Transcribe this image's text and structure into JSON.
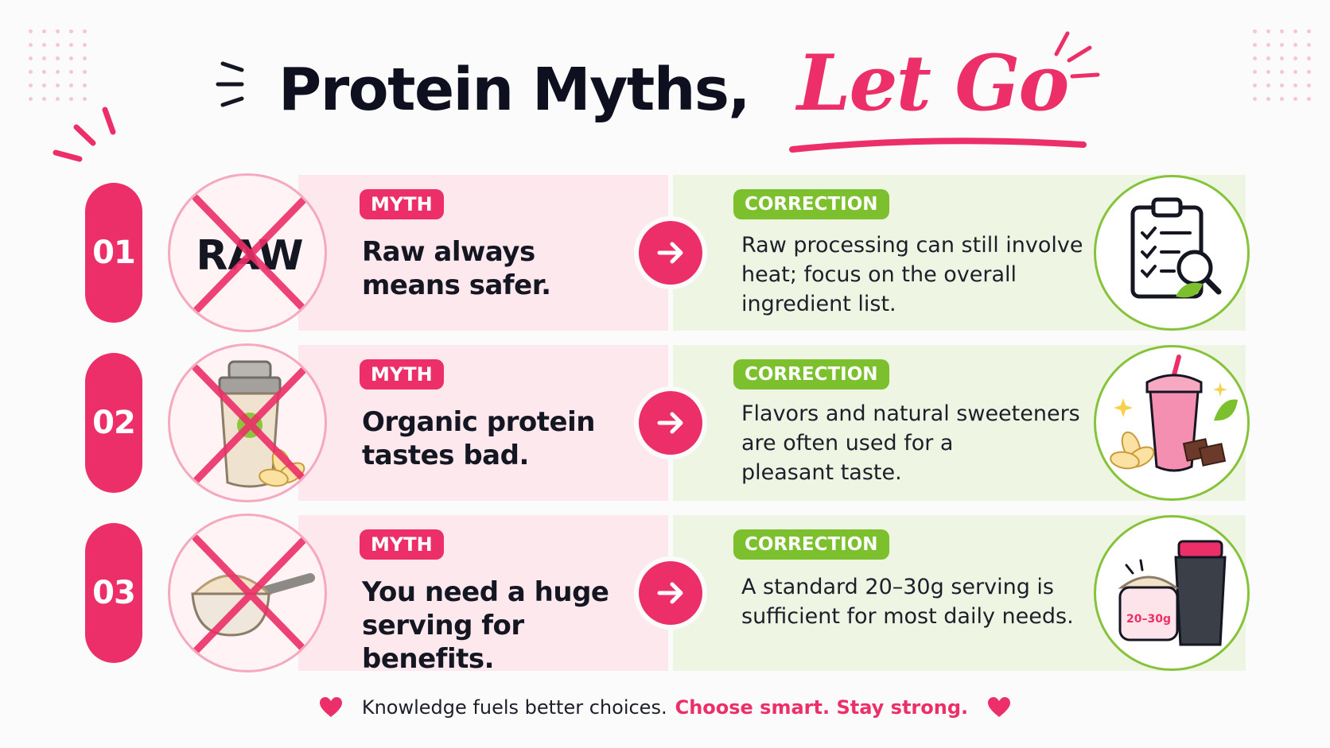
{
  "title": {
    "main": "Protein Myths,",
    "accent": "Let Go"
  },
  "colors": {
    "accent": "#ec2f68",
    "correction": "#7cc02e",
    "myth_bg": "#fde8ee",
    "correction_bg": "#eef6e3"
  },
  "rows": [
    {
      "number": "01",
      "myth_label": "MYTH",
      "myth_lines": [
        "Raw always",
        "means safer."
      ],
      "correction_label": "CORRECTION",
      "correction_lines": [
        "Raw processing can still involve",
        "heat; focus on the overall",
        "ingredient list."
      ],
      "left_icon": "raw-crossed-icon",
      "left_icon_text": "RAW",
      "right_icon": "clipboard-magnifier-icon"
    },
    {
      "number": "02",
      "myth_label": "MYTH",
      "myth_lines": [
        "Organic protein",
        "tastes bad."
      ],
      "correction_label": "CORRECTION",
      "correction_lines": [
        "Flavors and natural sweeteners",
        "are often used for a",
        "pleasant taste."
      ],
      "left_icon": "shaker-crossed-icon",
      "right_icon": "smoothie-chocolate-icon"
    },
    {
      "number": "03",
      "myth_label": "MYTH",
      "myth_lines": [
        "You need a huge",
        "serving for benefits."
      ],
      "correction_label": "CORRECTION",
      "correction_lines": [
        "A standard 20–30g serving is",
        "sufficient for most daily needs."
      ],
      "left_icon": "scoop-crossed-icon",
      "right_icon": "protein-tub-shaker-icon",
      "right_icon_text": "20–30g"
    }
  ],
  "footer": {
    "text": "Knowledge fuels better choices.",
    "accent": "Choose smart. Stay strong."
  }
}
